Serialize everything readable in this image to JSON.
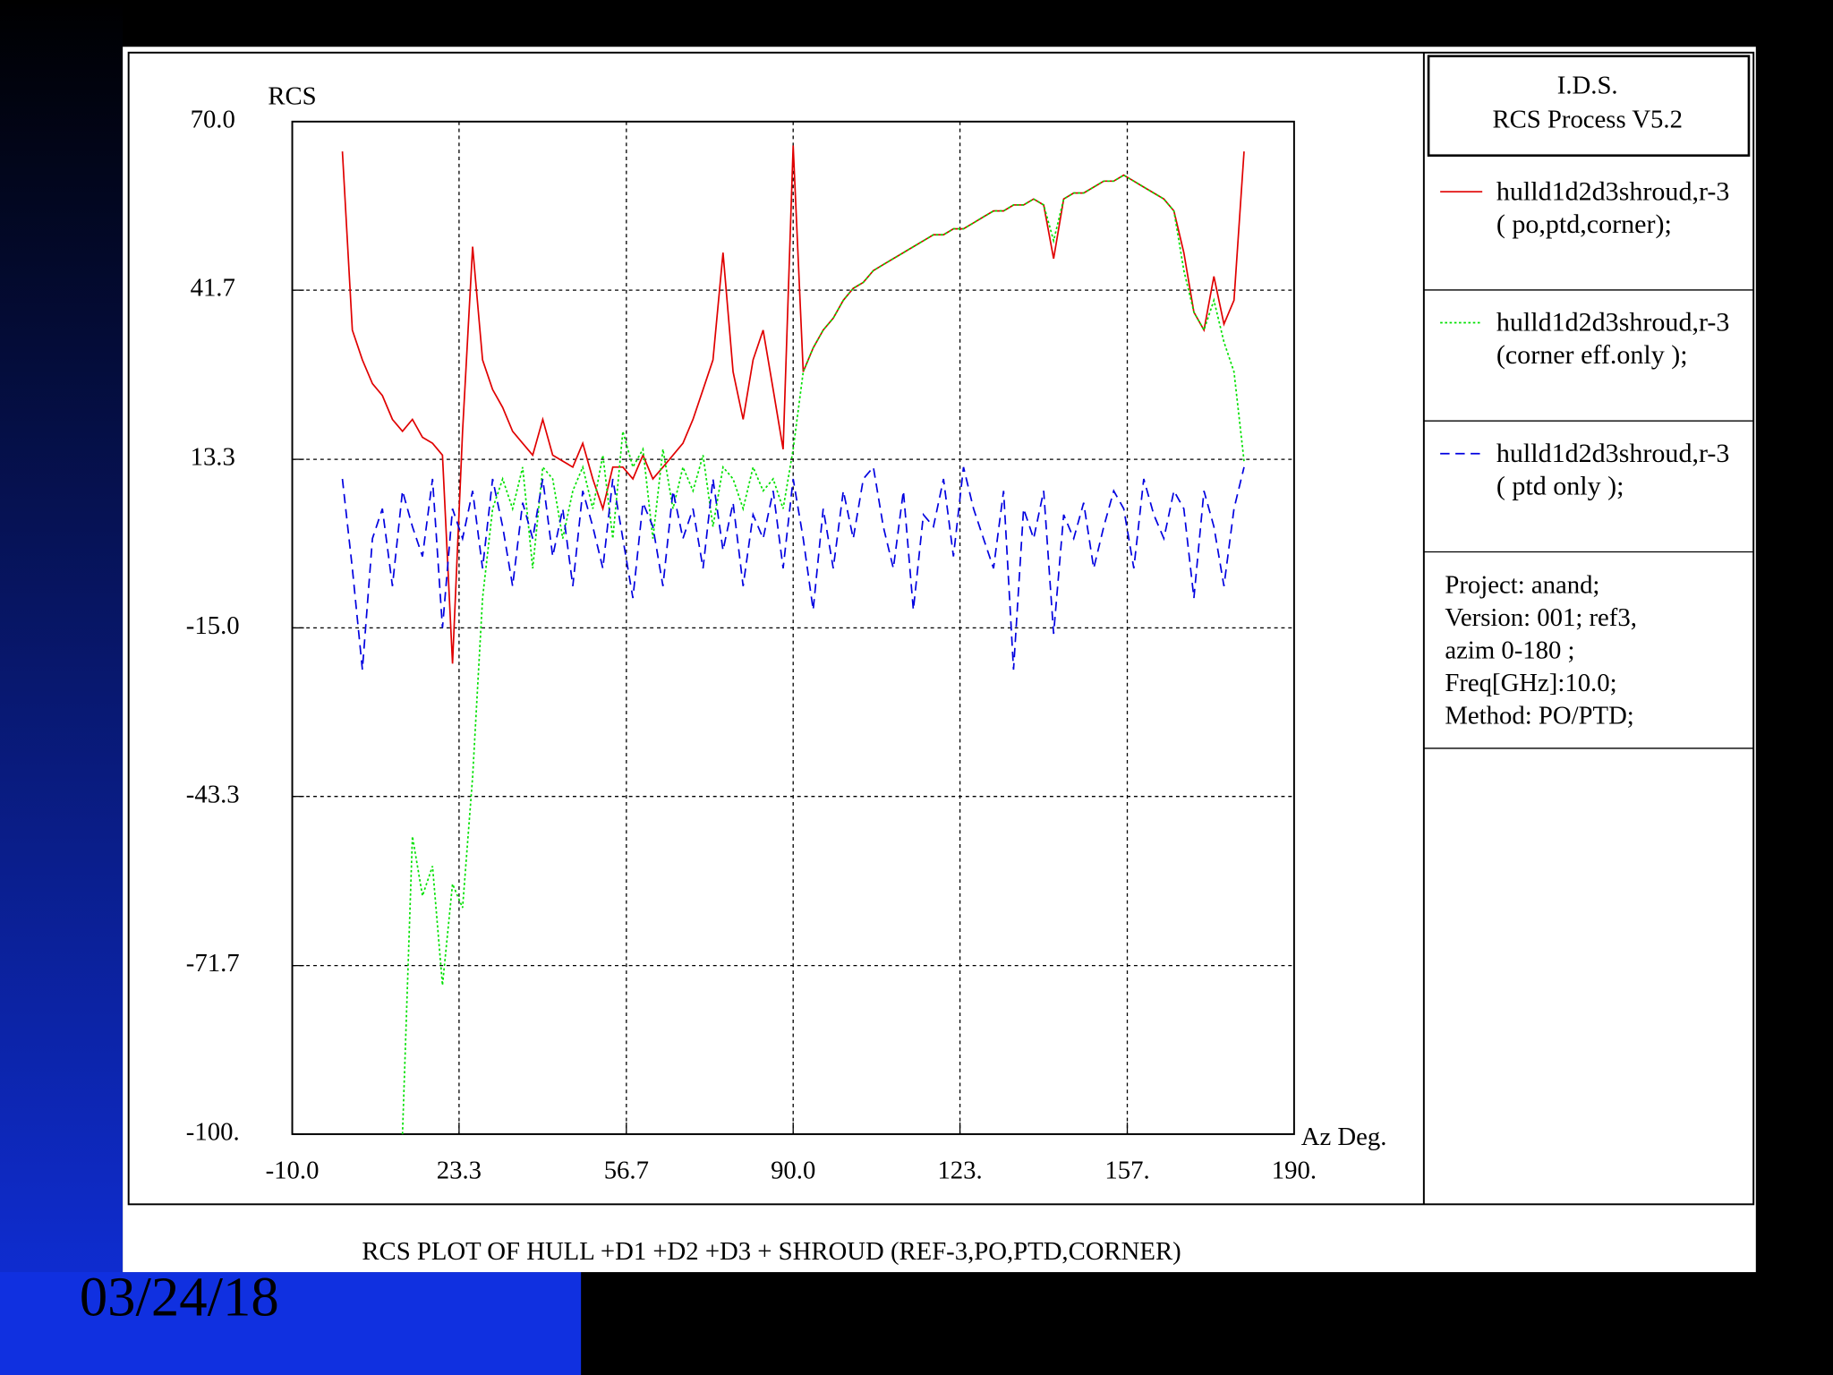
{
  "chart_data": {
    "type": "line",
    "title": "RCS PLOT OF HULL +D1 +D2 +D3 + SHROUD (REF-3,PO,PTD,CORNER)",
    "y_label": "RCS",
    "x_label": "Az Deg.",
    "header": [
      "I.D.S.",
      "RCS Process V5.2"
    ],
    "info": [
      "Project: anand;",
      "Version: 001; ref3,",
      "azim 0-180 ;",
      "Freq[GHz]:10.0;",
      "Method: PO/PTD;"
    ],
    "date": "03/24/18",
    "grid": true,
    "xlim": [
      -10,
      190
    ],
    "xticks": [
      {
        "value": -10,
        "label": "-10.0"
      },
      23.3,
      56.7,
      {
        "value": 90,
        "label": "90.0"
      },
      {
        "value": 123.3,
        "label": "123."
      },
      {
        "value": 156.7,
        "label": "157."
      },
      {
        "value": 190,
        "label": "190."
      }
    ],
    "ylim": [
      -100,
      70
    ],
    "yticks": [
      {
        "value": 70,
        "label": "70.0"
      },
      41.7,
      13.3,
      {
        "value": -15,
        "label": "-15.0"
      },
      -43.3,
      -71.7,
      {
        "value": -100,
        "label": "-100."
      }
    ],
    "x": [
      0,
      2,
      4,
      6,
      8,
      10,
      12,
      14,
      16,
      18,
      20,
      22,
      24,
      26,
      28,
      30,
      32,
      34,
      36,
      38,
      40,
      42,
      44,
      46,
      48,
      50,
      52,
      54,
      56,
      58,
      60,
      62,
      64,
      66,
      68,
      70,
      72,
      74,
      76,
      78,
      80,
      82,
      84,
      86,
      88,
      90,
      92,
      94,
      96,
      98,
      100,
      102,
      104,
      106,
      108,
      110,
      112,
      114,
      116,
      118,
      120,
      122,
      124,
      126,
      128,
      130,
      132,
      134,
      136,
      138,
      140,
      142,
      144,
      146,
      148,
      150,
      152,
      154,
      156,
      158,
      160,
      162,
      164,
      166,
      168,
      170,
      172,
      174,
      176,
      178,
      180
    ],
    "series": [
      {
        "name": "hulld1d2d3shroud,r-3 ( po,ptd,corner);",
        "color": "#e00000",
        "dash": "none",
        "values": [
          65,
          35,
          30,
          26,
          24,
          20,
          18,
          20,
          17,
          16,
          14,
          -21,
          18,
          49,
          30,
          25,
          22,
          18,
          16,
          14,
          20,
          14,
          13,
          12,
          16,
          10,
          5,
          12,
          12,
          10,
          14,
          10,
          12,
          14,
          16,
          20,
          25,
          30,
          48,
          28,
          20,
          30,
          35,
          25,
          15,
          66,
          28,
          32,
          35,
          37,
          40,
          42,
          43,
          45,
          46,
          47,
          48,
          49,
          50,
          51,
          51,
          52,
          52,
          53,
          54,
          55,
          55,
          56,
          56,
          57,
          56,
          47,
          57,
          58,
          58,
          59,
          60,
          60,
          61,
          60,
          59,
          58,
          57,
          55,
          48,
          38,
          35,
          44,
          36,
          40,
          65
        ]
      },
      {
        "name": "hulld1d2d3shroud,r-3 (corner eff.only );",
        "color": "#00e000",
        "dash": "2 2",
        "values": [
          null,
          null,
          null,
          null,
          null,
          null,
          -100,
          -50,
          -60,
          -55,
          -75,
          -58,
          -62,
          -40,
          -10,
          5,
          10,
          5,
          12,
          -5,
          12,
          10,
          0,
          8,
          12,
          5,
          14,
          0,
          18,
          12,
          15,
          0,
          15,
          5,
          12,
          8,
          14,
          2,
          12,
          10,
          5,
          12,
          8,
          10,
          5,
          15,
          28,
          32,
          35,
          37,
          40,
          42,
          43,
          45,
          46,
          47,
          48,
          49,
          50,
          51,
          51,
          52,
          52,
          53,
          54,
          55,
          55,
          56,
          56,
          57,
          56,
          50,
          57,
          58,
          58,
          59,
          60,
          60,
          61,
          60,
          59,
          58,
          57,
          55,
          45,
          38,
          35,
          40,
          33,
          28,
          13
        ]
      },
      {
        "name": "hulld1d2d3shroud,r-3 ( ptd only );",
        "color": "#0000e0",
        "dash": "8 5",
        "values": [
          10,
          -5,
          -22,
          0,
          5,
          -8,
          8,
          2,
          -3,
          10,
          -15,
          5,
          0,
          8,
          -5,
          10,
          2,
          -8,
          6,
          0,
          10,
          -3,
          5,
          -8,
          8,
          2,
          -5,
          10,
          0,
          -10,
          6,
          2,
          -8,
          8,
          0,
          5,
          -5,
          10,
          -2,
          6,
          -8,
          4,
          0,
          8,
          -5,
          10,
          0,
          -12,
          5,
          -5,
          8,
          0,
          10,
          12,
          2,
          -5,
          8,
          -12,
          4,
          2,
          10,
          -3,
          12,
          5,
          0,
          -5,
          8,
          -22,
          5,
          0,
          8,
          -16,
          4,
          0,
          6,
          -5,
          2,
          8,
          5,
          -5,
          10,
          4,
          0,
          8,
          5,
          -10,
          8,
          2,
          -8,
          5,
          12
        ]
      }
    ]
  }
}
